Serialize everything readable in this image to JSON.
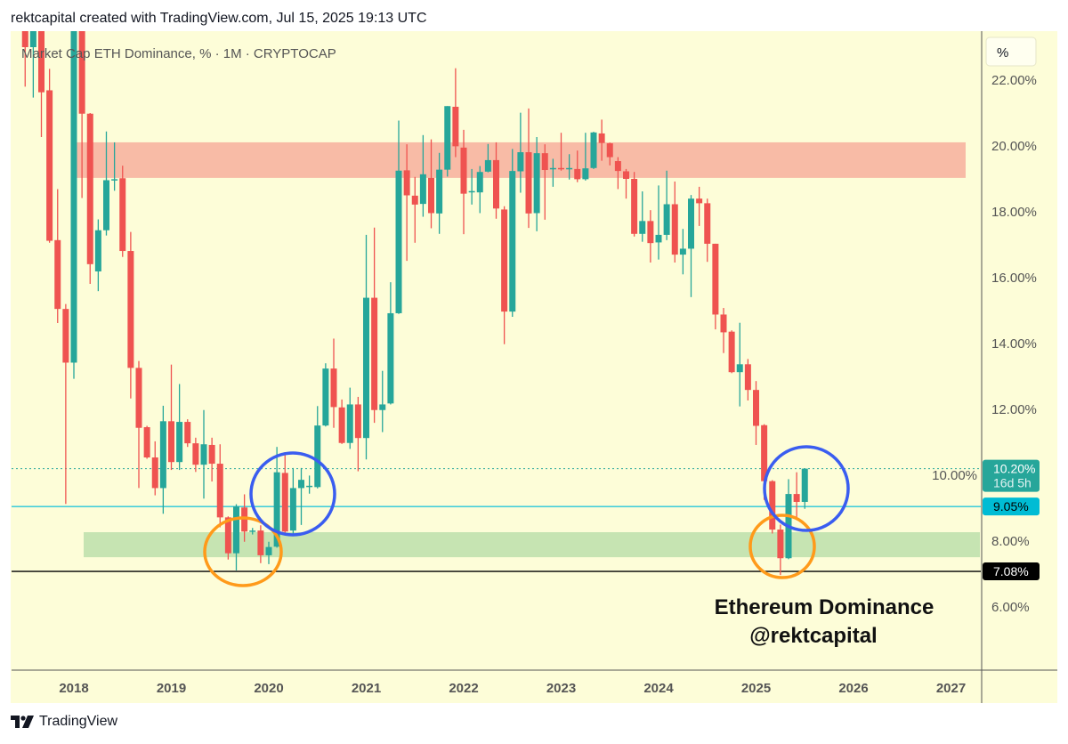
{
  "header": {
    "title": "rektcapital created with TradingView.com, Jul 15, 2025 19:13 UTC"
  },
  "legend": {
    "symbol": "Market Cap ETH Dominance, % · 1M · CRYPTOCAP"
  },
  "price_axis": {
    "unit_button": "%"
  },
  "annotation": {
    "line1": "Ethereum Dominance",
    "line2": "@rektcapital"
  },
  "footer": {
    "brand": "TradingView"
  },
  "colors": {
    "up": "#26a69a",
    "down": "#ef5350",
    "background": "#fdfdd8",
    "resistance": "#f8bba6",
    "support": "#c6e4b2",
    "circle_blue": "#3a5df0",
    "circle_orange": "#ff9a1a",
    "level_cyan": "#26c6da"
  },
  "chart_data": {
    "type": "candlestick",
    "title": "Market Cap ETH Dominance, % · 1M · CRYPTOCAP",
    "ylabel": "%",
    "ylim": [
      5.2,
      23.6
    ],
    "y_ticks": [
      6,
      8,
      10,
      12,
      14,
      16,
      18,
      20,
      22
    ],
    "y_tick_labels": [
      "6.00%",
      "8.00%",
      "10.00%",
      "12.00%",
      "14.00%",
      "16.00%",
      "18.00%",
      "20.00%",
      "22.00%"
    ],
    "x_ticks": [
      "2018",
      "2019",
      "2020",
      "2021",
      "2022",
      "2023",
      "2024",
      "2025",
      "2026",
      "2027"
    ],
    "first_month": "2017-07",
    "candles_ohlc": [
      [
        26,
        28,
        21.8,
        23
      ],
      [
        23,
        27,
        21.47,
        25
      ],
      [
        25,
        26,
        20.27,
        21.63
      ],
      [
        21.69,
        22.34,
        17.06,
        17.12
      ],
      [
        17.14,
        18.69,
        14.62,
        15.05
      ],
      [
        15.05,
        15.2,
        9.13,
        13.42
      ],
      [
        13.42,
        24.5,
        12.93,
        24
      ],
      [
        24,
        24.5,
        18.42,
        20.98
      ],
      [
        20.98,
        21.0,
        15.81,
        16.41
      ],
      [
        16.19,
        17.77,
        15.59,
        17.44
      ],
      [
        17.44,
        20.44,
        17.28,
        18.96
      ],
      [
        18.96,
        20.11,
        18.64,
        18.99
      ],
      [
        19.02,
        19.4,
        16.63,
        16.81
      ],
      [
        16.81,
        17.39,
        12.33,
        13.26
      ],
      [
        13.26,
        13.47,
        9.61,
        11.44
      ],
      [
        11.46,
        11.5,
        10.5,
        10.54
      ],
      [
        10.54,
        11.03,
        9.39,
        9.61
      ],
      [
        9.61,
        12.11,
        8.83,
        11.64
      ],
      [
        11.64,
        13.36,
        10.16,
        10.4
      ],
      [
        10.4,
        12.77,
        10.16,
        11.62
      ],
      [
        11.62,
        11.7,
        10.86,
        10.97
      ],
      [
        10.97,
        11.14,
        10.1,
        10.32
      ],
      [
        10.32,
        11.98,
        9.29,
        10.94
      ],
      [
        10.92,
        11.14,
        9.81,
        10.35
      ],
      [
        10.35,
        10.94,
        8.42,
        8.72
      ],
      [
        8.72,
        8.75,
        7.44,
        7.63
      ],
      [
        7.63,
        9.12,
        7.11,
        9.05
      ],
      [
        9.02,
        9.42,
        7.98,
        8.29
      ],
      [
        8.3,
        8.4,
        8.2,
        8.32
      ],
      [
        8.32,
        8.48,
        7.33,
        7.57
      ],
      [
        7.57,
        7.98,
        7.3,
        7.82
      ],
      [
        7.83,
        10.86,
        7.8,
        10.09
      ],
      [
        10.07,
        10.7,
        8.2,
        8.29
      ],
      [
        8.32,
        10.22,
        8.2,
        9.61
      ],
      [
        9.61,
        10.22,
        8.49,
        9.86
      ],
      [
        9.66,
        9.99,
        9.44,
        9.68
      ],
      [
        9.64,
        12.1,
        9.6,
        11.51
      ],
      [
        11.51,
        13.4,
        11.48,
        13.24
      ],
      [
        13.24,
        14.15,
        11.44,
        12.07
      ],
      [
        12.06,
        12.3,
        10.95,
        10.98
      ],
      [
        10.98,
        12.66,
        10.8,
        12.15
      ],
      [
        12.15,
        12.38,
        10.12,
        11.13
      ],
      [
        11.13,
        17.3,
        10.48,
        15.39
      ],
      [
        15.39,
        17.52,
        11.59,
        11.98
      ],
      [
        11.98,
        13.17,
        11.31,
        12.15
      ],
      [
        12.18,
        15.86,
        12.15,
        14.92
      ],
      [
        14.92,
        20.77,
        14.9,
        19.25
      ],
      [
        19.26,
        20.05,
        16.51,
        18.5
      ],
      [
        18.49,
        19.06,
        17.06,
        18.22
      ],
      [
        18.24,
        20.33,
        17.85,
        19.14
      ],
      [
        19.03,
        20.2,
        17.5,
        17.96
      ],
      [
        17.95,
        19.79,
        17.33,
        19.28
      ],
      [
        19.28,
        21.21,
        19.07,
        21.21
      ],
      [
        21.19,
        22.36,
        19.66,
        19.99
      ],
      [
        19.95,
        20.49,
        17.32,
        18.55
      ],
      [
        18.6,
        19.3,
        18.22,
        18.63
      ],
      [
        18.59,
        19.39,
        17.96,
        19.21
      ],
      [
        19.22,
        20.06,
        19.2,
        19.57
      ],
      [
        19.57,
        20.11,
        17.79,
        18.1
      ],
      [
        18.07,
        18.17,
        13.98,
        14.97
      ],
      [
        14.97,
        19.91,
        14.81,
        19.24
      ],
      [
        19.23,
        21.01,
        18.58,
        19.81
      ],
      [
        19.81,
        21.14,
        17.51,
        17.95
      ],
      [
        17.96,
        20.27,
        17.41,
        19.78
      ],
      [
        19.78,
        20.05,
        17.76,
        19.27
      ],
      [
        19.3,
        19.61,
        18.76,
        19.33
      ],
      [
        19.33,
        20.4,
        19.25,
        19.3
      ],
      [
        19.3,
        19.75,
        18.98,
        19.33
      ],
      [
        19.3,
        19.86,
        18.9,
        18.99
      ],
      [
        18.99,
        20.4,
        18.95,
        19.32
      ],
      [
        19.33,
        20.43,
        19.3,
        20.41
      ],
      [
        20.38,
        20.8,
        19.55,
        20.09
      ],
      [
        20.08,
        20.1,
        19.41,
        19.66
      ],
      [
        19.54,
        19.66,
        18.69,
        19.24
      ],
      [
        19.23,
        19.3,
        18.4,
        19.0
      ],
      [
        19.0,
        19.21,
        17.25,
        17.33
      ],
      [
        17.33,
        18.62,
        17.09,
        17.72
      ],
      [
        17.72,
        18.05,
        16.46,
        17.05
      ],
      [
        17.07,
        18.8,
        16.55,
        17.3
      ],
      [
        17.3,
        19.25,
        17.14,
        18.23
      ],
      [
        18.23,
        18.92,
        16.46,
        16.7
      ],
      [
        16.7,
        17.48,
        16.1,
        16.88
      ],
      [
        16.88,
        18.51,
        15.41,
        18.4
      ],
      [
        18.4,
        18.76,
        17.57,
        18.26
      ],
      [
        18.26,
        18.4,
        16.48,
        17.03
      ],
      [
        17.03,
        17.03,
        14.43,
        14.88
      ],
      [
        14.88,
        15.08,
        13.71,
        14.34
      ],
      [
        14.36,
        14.4,
        13.1,
        13.13
      ],
      [
        13.13,
        14.63,
        12.09,
        13.37
      ],
      [
        13.37,
        13.53,
        12.27,
        12.59
      ],
      [
        12.59,
        12.86,
        10.92,
        11.5
      ],
      [
        11.52,
        11.55,
        9.25,
        9.82
      ],
      [
        9.82,
        9.85,
        8.23,
        8.35
      ],
      [
        8.35,
        8.5,
        6.97,
        7.48
      ],
      [
        7.48,
        9.88,
        7.45,
        9.43
      ],
      [
        9.43,
        10.09,
        8.65,
        9.19
      ],
      [
        9.19,
        10.2,
        8.98,
        10.2
      ]
    ],
    "zones": [
      {
        "name": "resistance",
        "from": 19.03,
        "to": 20.11
      },
      {
        "name": "support",
        "from": 7.51,
        "to": 8.27
      }
    ],
    "levels": [
      {
        "name": "last-price",
        "value": 10.2,
        "label": "10.20%",
        "sublabel": "16d 5h"
      },
      {
        "name": "level-cyan",
        "value": 9.05,
        "label": "9.05%"
      },
      {
        "name": "level-black",
        "value": 7.08,
        "label": "7.08%"
      }
    ]
  }
}
